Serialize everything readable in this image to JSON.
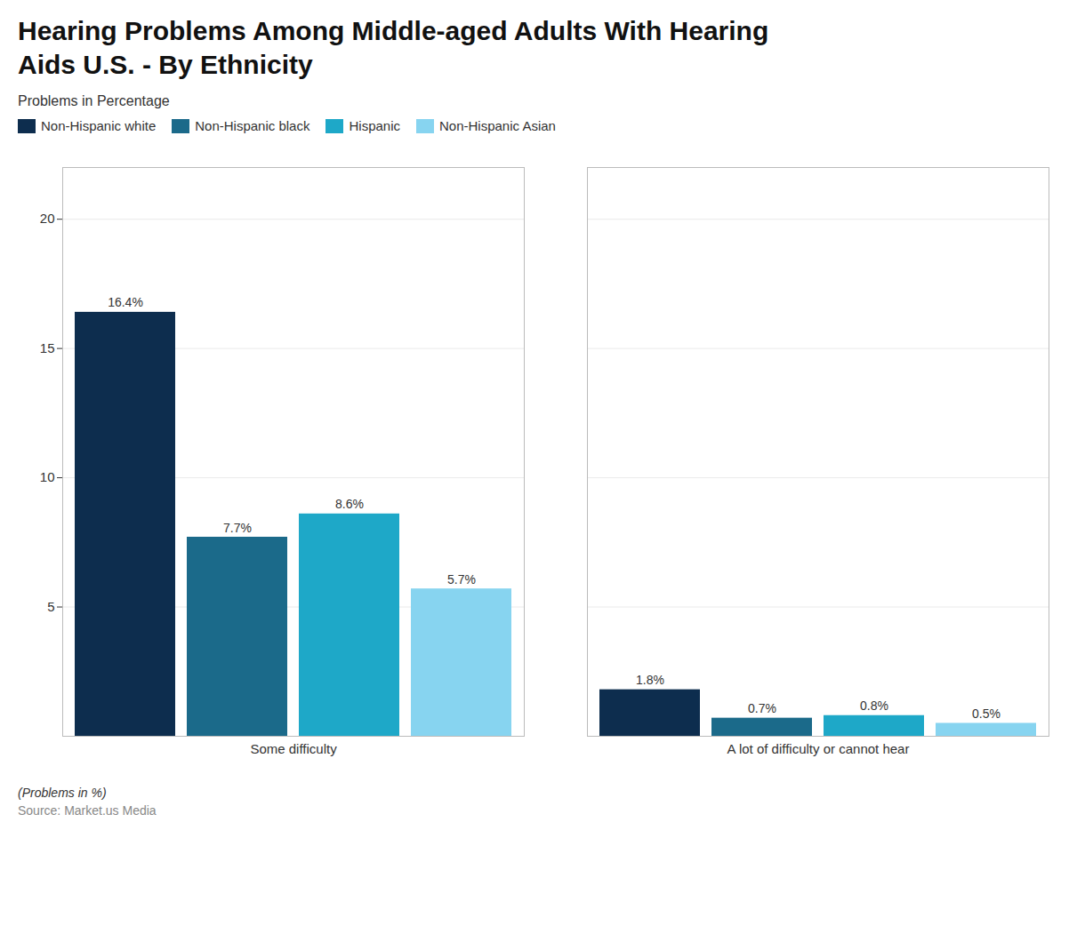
{
  "chart_data": {
    "type": "bar",
    "title": "Hearing Problems Among Middle-aged Adults With Hearing\nAids U.S. - By Ethnicity",
    "subtitle": "Problems in Percentage",
    "categories": [
      "Some difficulty",
      "A lot of difficulty or cannot hear"
    ],
    "series": [
      {
        "name": "Non-Hispanic white",
        "color": "#0d2d4e",
        "values": [
          16.4,
          1.8
        ],
        "value_labels": [
          "16.4%",
          "1.8%"
        ]
      },
      {
        "name": "Non-Hispanic black",
        "color": "#1b6a8a",
        "values": [
          7.7,
          0.7
        ],
        "value_labels": [
          "7.7%",
          "0.7%"
        ]
      },
      {
        "name": "Hispanic",
        "color": "#1ea8c8",
        "values": [
          8.6,
          0.8
        ],
        "value_labels": [
          "8.6%",
          "0.8%"
        ]
      },
      {
        "name": "Non-Hispanic Asian",
        "color": "#87d4f0",
        "values": [
          5.7,
          0.5
        ],
        "value_labels": [
          "5.7%",
          "0.5%"
        ]
      }
    ],
    "ylim": [
      0,
      22
    ],
    "yticks": [
      5,
      10,
      15,
      20
    ],
    "grid": true,
    "legend": "top",
    "data_labels": true,
    "footnote": "(Problems in %)",
    "source": "Source: Market.us Media"
  }
}
